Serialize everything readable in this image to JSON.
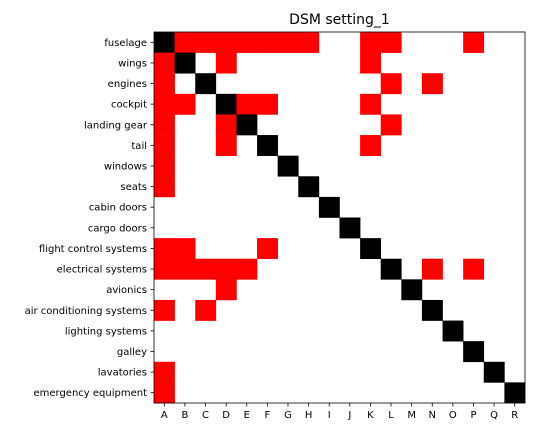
{
  "chart_data": {
    "type": "heatmap",
    "title": "DSM setting_1",
    "xlabel": "",
    "ylabel": "",
    "columns": [
      "A",
      "B",
      "C",
      "D",
      "E",
      "F",
      "G",
      "H",
      "I",
      "J",
      "K",
      "L",
      "M",
      "N",
      "O",
      "P",
      "Q",
      "R"
    ],
    "rows": [
      "fuselage",
      "wings",
      "engines",
      "cockpit",
      "landing gear",
      "tail",
      "windows",
      "seats",
      "cabin doors",
      "cargo doors",
      "flight control systems",
      "electrical systems",
      "avionics",
      "air conditioning systems",
      "lighting systems",
      "galley",
      "lavatories",
      "emergency equipment"
    ],
    "values": [
      [
        2,
        1,
        1,
        1,
        1,
        1,
        1,
        1,
        0,
        0,
        1,
        1,
        0,
        0,
        0,
        1,
        0,
        0
      ],
      [
        1,
        2,
        0,
        1,
        0,
        0,
        0,
        0,
        0,
        0,
        1,
        0,
        0,
        0,
        0,
        0,
        0,
        0
      ],
      [
        1,
        0,
        2,
        0,
        0,
        0,
        0,
        0,
        0,
        0,
        0,
        1,
        0,
        1,
        0,
        0,
        0,
        0
      ],
      [
        1,
        1,
        0,
        2,
        1,
        1,
        0,
        0,
        0,
        0,
        1,
        0,
        0,
        0,
        0,
        0,
        0,
        0
      ],
      [
        1,
        0,
        0,
        1,
        2,
        0,
        0,
        0,
        0,
        0,
        0,
        1,
        0,
        0,
        0,
        0,
        0,
        0
      ],
      [
        1,
        0,
        0,
        1,
        0,
        2,
        0,
        0,
        0,
        0,
        1,
        0,
        0,
        0,
        0,
        0,
        0,
        0
      ],
      [
        1,
        0,
        0,
        0,
        0,
        0,
        2,
        0,
        0,
        0,
        0,
        0,
        0,
        0,
        0,
        0,
        0,
        0
      ],
      [
        1,
        0,
        0,
        0,
        0,
        0,
        0,
        2,
        0,
        0,
        0,
        0,
        0,
        0,
        0,
        0,
        0,
        0
      ],
      [
        0,
        0,
        0,
        0,
        0,
        0,
        0,
        0,
        2,
        0,
        0,
        0,
        0,
        0,
        0,
        0,
        0,
        0
      ],
      [
        0,
        0,
        0,
        0,
        0,
        0,
        0,
        0,
        0,
        2,
        0,
        0,
        0,
        0,
        0,
        0,
        0,
        0
      ],
      [
        1,
        1,
        0,
        0,
        0,
        1,
        0,
        0,
        0,
        0,
        2,
        0,
        0,
        0,
        0,
        0,
        0,
        0
      ],
      [
        1,
        1,
        1,
        1,
        1,
        0,
        0,
        0,
        0,
        0,
        0,
        2,
        0,
        1,
        0,
        1,
        0,
        0
      ],
      [
        0,
        0,
        0,
        1,
        0,
        0,
        0,
        0,
        0,
        0,
        0,
        0,
        2,
        0,
        0,
        0,
        0,
        0
      ],
      [
        1,
        0,
        1,
        0,
        0,
        0,
        0,
        0,
        0,
        0,
        0,
        0,
        0,
        2,
        0,
        0,
        0,
        0
      ],
      [
        0,
        0,
        0,
        0,
        0,
        0,
        0,
        0,
        0,
        0,
        0,
        0,
        0,
        0,
        2,
        0,
        0,
        0
      ],
      [
        0,
        0,
        0,
        0,
        0,
        0,
        0,
        0,
        0,
        0,
        0,
        0,
        0,
        0,
        0,
        2,
        0,
        0
      ],
      [
        1,
        0,
        0,
        0,
        0,
        0,
        0,
        0,
        0,
        0,
        0,
        0,
        0,
        0,
        0,
        0,
        2,
        0
      ],
      [
        1,
        0,
        0,
        0,
        0,
        0,
        0,
        0,
        0,
        0,
        0,
        0,
        0,
        0,
        0,
        0,
        0,
        2
      ]
    ],
    "colors": {
      "0": "#ffffff",
      "1": "#ff0000",
      "2": "#000000"
    },
    "grid": false,
    "legend": "none"
  }
}
